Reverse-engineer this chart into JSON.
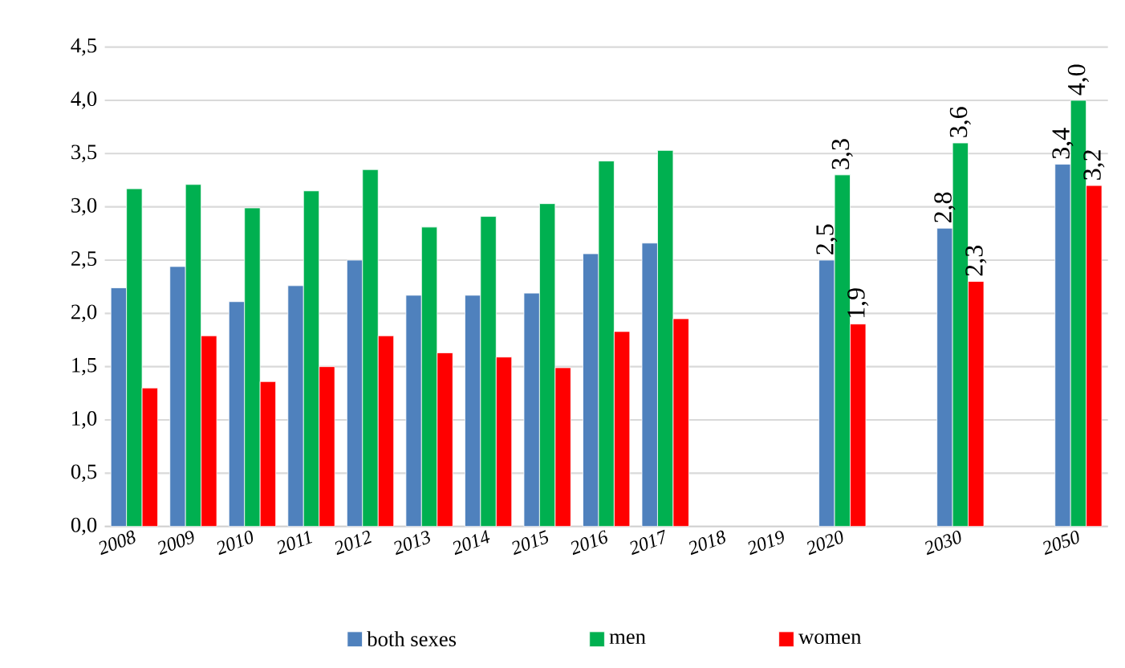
{
  "chart_data": {
    "type": "bar",
    "categories": [
      "2008",
      "2009",
      "2010",
      "2011",
      "2012",
      "2013",
      "2014",
      "2015",
      "2016",
      "2017",
      "2018",
      "2019",
      "2020",
      null,
      "2030",
      null,
      "2050"
    ],
    "series": [
      {
        "name": "both sexes",
        "color": "#4f81bd",
        "values": [
          2.24,
          2.44,
          2.11,
          2.26,
          2.5,
          2.17,
          2.17,
          2.19,
          2.56,
          2.66,
          null,
          null,
          2.5,
          null,
          2.8,
          null,
          3.4
        ],
        "value_labels": [
          null,
          null,
          null,
          null,
          null,
          null,
          null,
          null,
          null,
          null,
          null,
          null,
          "2,5",
          null,
          "2,8",
          null,
          "3,4"
        ]
      },
      {
        "name": "men",
        "color": "#00b050",
        "values": [
          3.17,
          3.21,
          2.99,
          3.15,
          3.35,
          2.81,
          2.91,
          3.03,
          3.43,
          3.53,
          null,
          null,
          3.3,
          null,
          3.6,
          null,
          4.0
        ],
        "value_labels": [
          null,
          null,
          null,
          null,
          null,
          null,
          null,
          null,
          null,
          null,
          null,
          null,
          "3,3",
          null,
          "3,6",
          null,
          "4,0"
        ]
      },
      {
        "name": "women",
        "color": "#ff0000",
        "values": [
          1.3,
          1.79,
          1.36,
          1.5,
          1.79,
          1.63,
          1.59,
          1.49,
          1.83,
          1.95,
          null,
          null,
          1.9,
          null,
          2.3,
          null,
          3.2
        ],
        "value_labels": [
          null,
          null,
          null,
          null,
          null,
          null,
          null,
          null,
          null,
          null,
          null,
          null,
          "1,9",
          null,
          "2,3",
          null,
          "3,2"
        ]
      }
    ],
    "ylim": [
      0,
      4.5
    ],
    "yticks": [
      {
        "value": 0,
        "label": "0,0"
      },
      {
        "value": 0.5,
        "label": "0,5"
      },
      {
        "value": 1,
        "label": "1,0"
      },
      {
        "value": 1.5,
        "label": "1,5"
      },
      {
        "value": 2,
        "label": "2,0"
      },
      {
        "value": 2.5,
        "label": "2,5"
      },
      {
        "value": 3,
        "label": "3,0"
      },
      {
        "value": 3.5,
        "label": "3,5"
      },
      {
        "value": 4,
        "label": "4,0"
      },
      {
        "value": 4.5,
        "label": "4,5"
      }
    ],
    "grid": "y",
    "legend": "bottom"
  }
}
